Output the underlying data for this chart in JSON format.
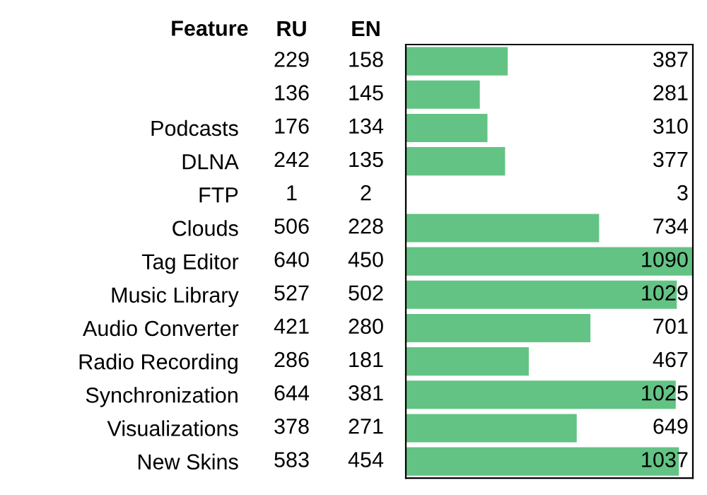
{
  "chart_data": [
    {
      "type": "heatmap",
      "ylabel": "Feature",
      "data_labels": true,
      "categories": [
        "RU",
        "EN"
      ],
      "y_categories": [
        null,
        null,
        "Podcasts",
        "DLNA",
        "FTP",
        "Clouds",
        "Tag Editor",
        "Music Library",
        "Audio Converter",
        "Radio Recording",
        "Synchronization",
        "Visualizations",
        "New Skins"
      ],
      "cells": [
        [
          229,
          158
        ],
        [
          136,
          145
        ],
        [
          176,
          134
        ],
        [
          242,
          135
        ],
        [
          1,
          2
        ],
        [
          506,
          228
        ],
        [
          640,
          450
        ],
        [
          527,
          502
        ],
        [
          421,
          280
        ],
        [
          286,
          181
        ],
        [
          644,
          381
        ],
        [
          378,
          271
        ],
        [
          583,
          454
        ]
      ]
    },
    {
      "type": "bar",
      "orientation": "horizontal",
      "categories": [
        null,
        null,
        null,
        null,
        null,
        null,
        null,
        null,
        null,
        null,
        null,
        null,
        null
      ],
      "values": [
        387,
        281,
        310,
        377,
        3,
        734,
        1090,
        1029,
        701,
        467,
        1025,
        649,
        1037
      ],
      "color": "#63c384",
      "data_labels": true,
      "tick_labels": false
    }
  ]
}
